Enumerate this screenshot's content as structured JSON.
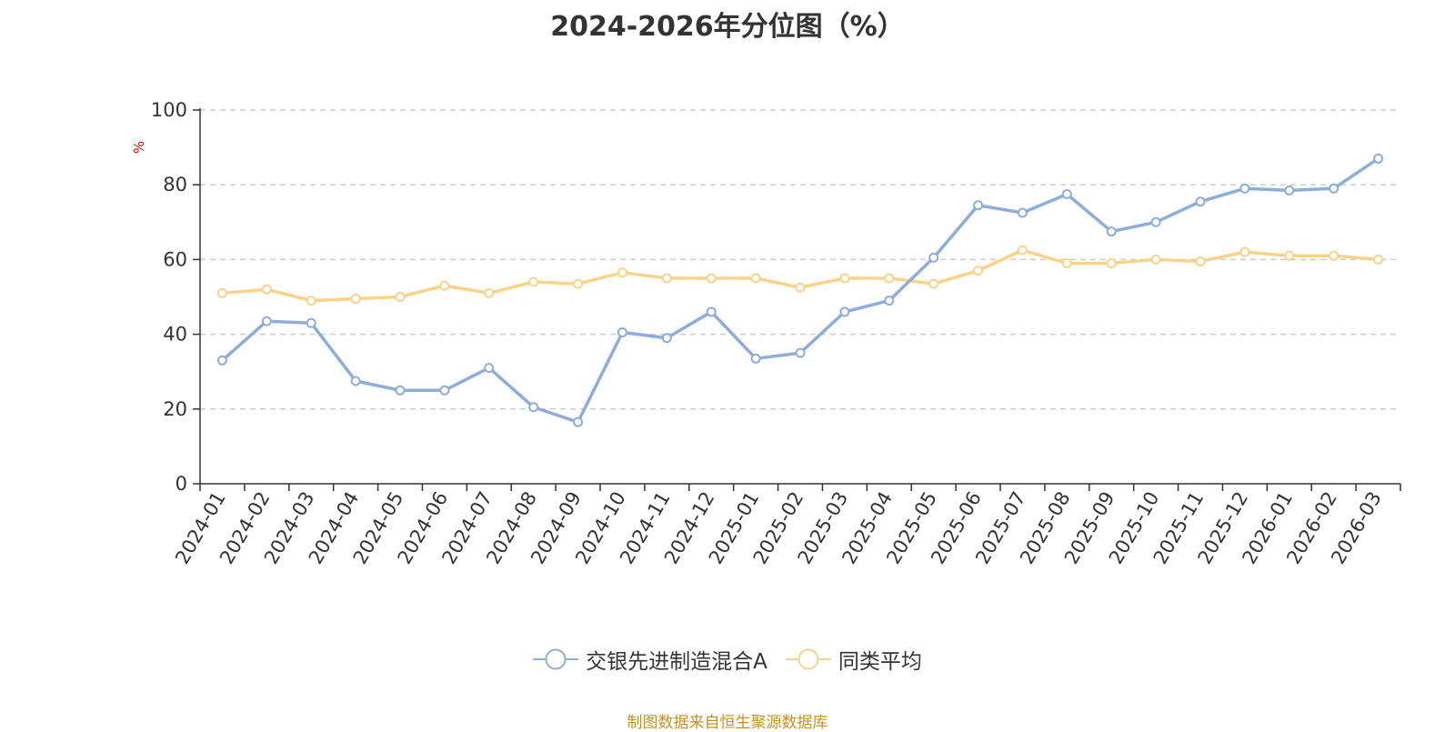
{
  "chart_data": {
    "type": "line",
    "title": "2024-2026年分位图（%）",
    "ylabel": "%",
    "xlabel": "",
    "ylim": [
      0,
      100
    ],
    "yticks": [
      0,
      20,
      40,
      60,
      80,
      100
    ],
    "grid": "horizontal dashed",
    "legend_position": "bottom-center",
    "categories": [
      "2024-01",
      "2024-02",
      "2024-03",
      "2024-04",
      "2024-05",
      "2024-06",
      "2024-07",
      "2024-08",
      "2024-09",
      "2024-10",
      "2024-11",
      "2024-12",
      "2025-01",
      "2025-02",
      "2025-03",
      "2025-04",
      "2025-05",
      "2025-06",
      "2025-07",
      "2025-08",
      "2025-09",
      "2025-10",
      "2025-11",
      "2025-12",
      "2026-01",
      "2026-02",
      "2026-03"
    ],
    "series": [
      {
        "name": "交银先进制造混合A",
        "color": "#8eadd8",
        "values": [
          33,
          43.5,
          43,
          27.5,
          25,
          25,
          31,
          20.5,
          16.5,
          40.5,
          39,
          46,
          33.5,
          35,
          46,
          49,
          60.5,
          74.5,
          72.5,
          77.5,
          67.5,
          70,
          75.5,
          79,
          78.5,
          79,
          87
        ]
      },
      {
        "name": "同类平均",
        "color": "#fad38a",
        "values": [
          51,
          52,
          49,
          49.5,
          50,
          53,
          51,
          54,
          53.5,
          56.5,
          55,
          55,
          55,
          52.5,
          55,
          55,
          53.5,
          57,
          62.5,
          59,
          59,
          60,
          59.5,
          62,
          61,
          61,
          60
        ]
      }
    ]
  },
  "source_note": "制图数据来自恒生聚源数据库"
}
